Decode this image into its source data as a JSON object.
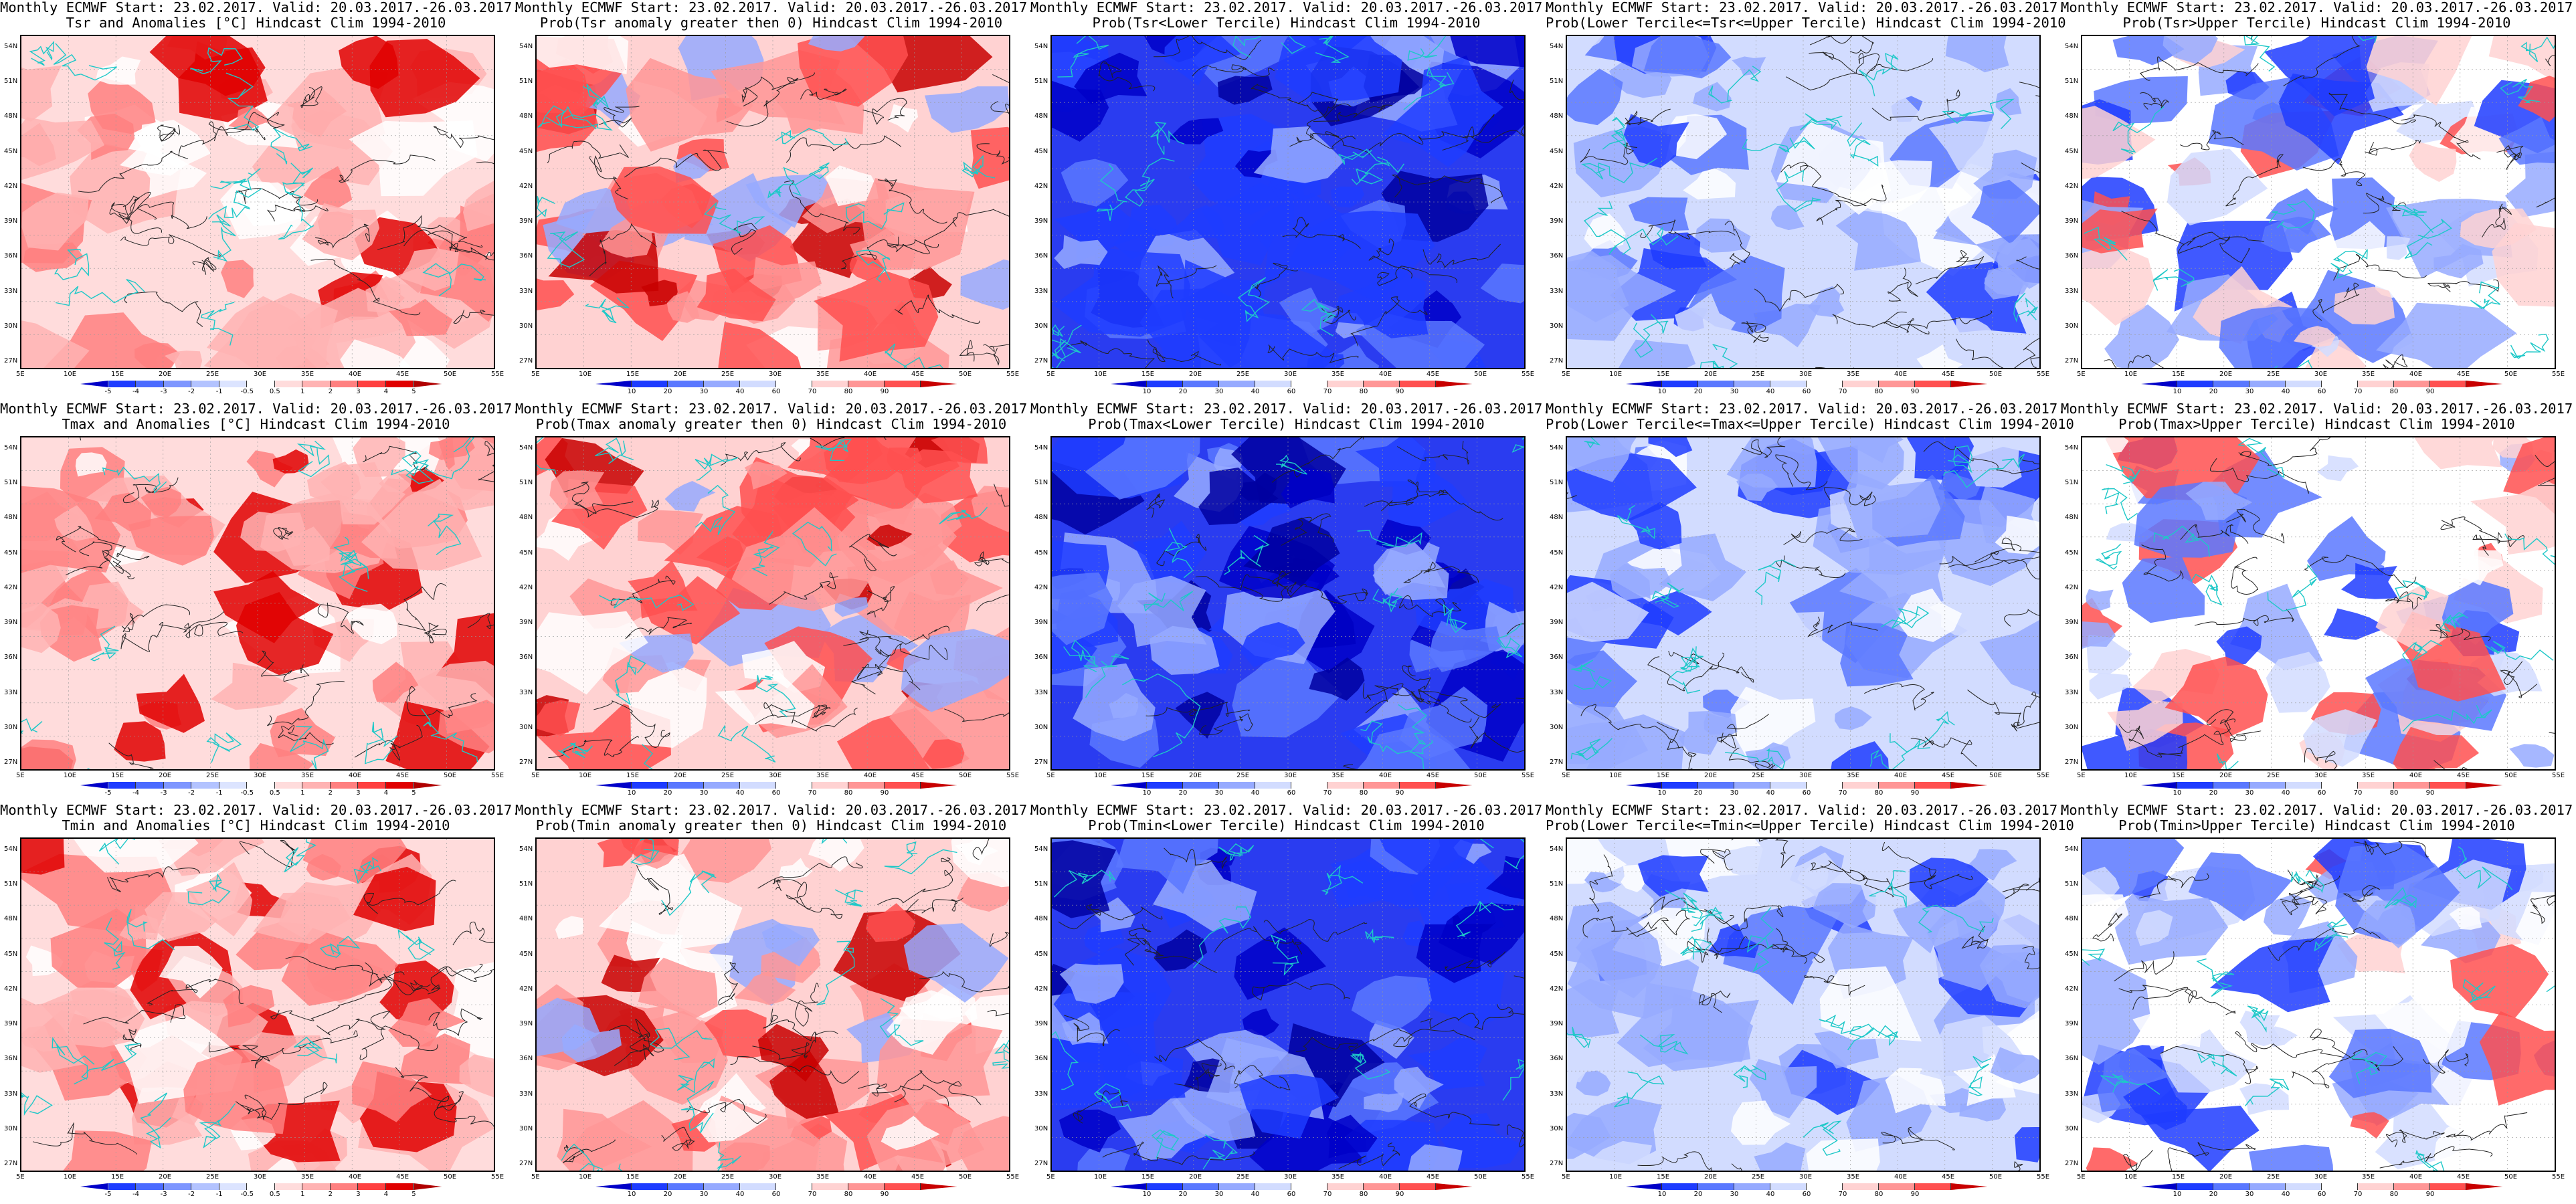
{
  "lat_labels": [
    "54N",
    "51N",
    "48N",
    "45N",
    "42N",
    "39N",
    "36N",
    "33N",
    "30N",
    "27N"
  ],
  "lon_labels": [
    "5E",
    "10E",
    "15E",
    "20E",
    "25E",
    "30E",
    "35E",
    "40E",
    "45E",
    "50E",
    "55E"
  ],
  "colorbars": {
    "anomaly": {
      "ticks": [
        "-5",
        "-4",
        "-3",
        "-2",
        "-1",
        "-0.5",
        "0.5",
        "1",
        "2",
        "3",
        "4",
        "5"
      ],
      "colors": [
        "#0000c8",
        "#1e3cff",
        "#4b6bff",
        "#7e96ff",
        "#b3c3ff",
        "#dce4ff",
        "#ffffff",
        "#ffdcdc",
        "#ffb3b3",
        "#ff8080",
        "#ff4040",
        "#e00000",
        "#b00000"
      ]
    },
    "prob": {
      "ticks": [
        "10",
        "20",
        "30",
        "40",
        "60",
        "70",
        "80",
        "90"
      ],
      "colors": [
        "#0000c8",
        "#1e3cff",
        "#5a78ff",
        "#96aaff",
        "#d2dcff",
        "#ffffff",
        "#ffd2d2",
        "#ff9696",
        "#ff5050",
        "#c80000"
      ]
    }
  },
  "panels": [
    {
      "line1": "Monthly ECMWF Start: 23.02.2017. Valid: 20.03.2017.-26.03.2017.",
      "line2": "Tsr and Anomalies [°C] Hindcast Clim 1994-2010",
      "style": "anom",
      "cbar": "anomaly"
    },
    {
      "line1": "Monthly ECMWF Start: 23.02.2017. Valid: 20.03.2017.-26.03.2017.",
      "line2": "Prob(Tsr anomaly greater then 0) Hindcast Clim 1994-2010",
      "style": "probwarm",
      "cbar": "prob"
    },
    {
      "line1": "Monthly ECMWF Start: 23.02.2017. Valid: 20.03.2017.-26.03.2017.",
      "line2": "Prob(Tsr<Lower Tercile) Hindcast Clim 1994-2010",
      "style": "deepblue",
      "cbar": "prob"
    },
    {
      "line1": "Monthly ECMWF Start: 23.02.2017. Valid: 20.03.2017.-26.03.2017.",
      "line2": "Prob(Lower Tercile<=Tsr<=Upper Tercile) Hindcast Clim 1994-2010",
      "style": "lightblue",
      "cbar": "prob"
    },
    {
      "line1": "Monthly ECMWF Start: 23.02.2017. Valid: 20.03.2017.-26.03.2017.",
      "line2": "Prob(Tsr>Upper Tercile) Hindcast Clim 1994-2010",
      "style": "mixed",
      "cbar": "prob"
    },
    {
      "line1": "Monthly ECMWF Start: 23.02.2017. Valid: 20.03.2017.-26.03.2017.",
      "line2": "Tmax and Anomalies [°C] Hindcast Clim 1994-2010",
      "style": "anom",
      "cbar": "anomaly"
    },
    {
      "line1": "Monthly ECMWF Start: 23.02.2017. Valid: 20.03.2017.-26.03.2017.",
      "line2": "Prob(Tmax anomaly greater then 0) Hindcast Clim 1994-2010",
      "style": "probwarm",
      "cbar": "prob"
    },
    {
      "line1": "Monthly ECMWF Start: 23.02.2017. Valid: 20.03.2017.-26.03.2017.",
      "line2": "Prob(Tmax<Lower Tercile) Hindcast Clim 1994-2010",
      "style": "deepblue",
      "cbar": "prob"
    },
    {
      "line1": "Monthly ECMWF Start: 23.02.2017. Valid: 20.03.2017.-26.03.2017.",
      "line2": "Prob(Lower Tercile<=Tmax<=Upper Tercile) Hindcast Clim 1994-2010",
      "style": "lightblue",
      "cbar": "prob"
    },
    {
      "line1": "Monthly ECMWF Start: 23.02.2017. Valid: 20.03.2017.-26.03.2017.",
      "line2": "Prob(Tmax>Upper Tercile) Hindcast Clim 1994-2010",
      "style": "mixed",
      "cbar": "prob"
    },
    {
      "line1": "Monthly ECMWF Start: 23.02.2017. Valid: 20.03.2017.-26.03.2017.",
      "line2": "Tmin and Anomalies [°C] Hindcast Clim 1994-2010",
      "style": "anom",
      "cbar": "anomaly"
    },
    {
      "line1": "Monthly ECMWF Start: 23.02.2017. Valid: 20.03.2017.-26.03.2017.",
      "line2": "Prob(Tmin anomaly greater then 0) Hindcast Clim 1994-2010",
      "style": "probwarm",
      "cbar": "prob"
    },
    {
      "line1": "Monthly ECMWF Start: 23.02.2017. Valid: 20.03.2017.-26.03.2017.",
      "line2": "Prob(Tmin<Lower Tercile) Hindcast Clim 1994-2010",
      "style": "deepblue",
      "cbar": "prob"
    },
    {
      "line1": "Monthly ECMWF Start: 23.02.2017. Valid: 20.03.2017.-26.03.2017.",
      "line2": "Prob(Lower Tercile<=Tmin<=Upper Tercile) Hindcast Clim 1994-2010",
      "style": "lightblue",
      "cbar": "prob"
    },
    {
      "line1": "Monthly ECMWF Start: 23.02.2017. Valid: 20.03.2017.-26.03.2017.",
      "line2": "Prob(Tmin>Upper Tercile) Hindcast Clim 1994-2010",
      "style": "mixed",
      "cbar": "prob"
    }
  ]
}
